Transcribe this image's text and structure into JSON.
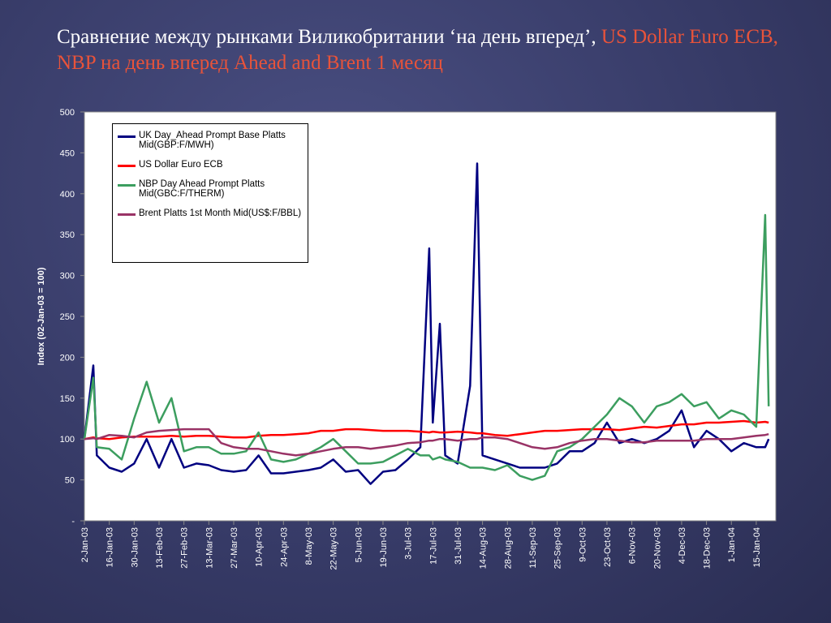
{
  "chart_data": {
    "type": "line",
    "title": [
      "Сравнение между рынками Виликобритании ‘на день вперед’,",
      "US Dollar Euro ECB, NBP на день вперед  Ahead and Brent 1 месяц"
    ],
    "title_colors": [
      "#ffffff",
      "#e8533a"
    ],
    "ylabel": "Index (02-Jan-03 = 100)",
    "x": [
      "2003-01-02",
      "2003-01-07",
      "2003-01-09",
      "2003-01-16",
      "2003-01-23",
      "2003-01-30",
      "2003-02-06",
      "2003-02-13",
      "2003-02-20",
      "2003-02-27",
      "2003-03-06",
      "2003-03-13",
      "2003-03-20",
      "2003-03-27",
      "2003-04-03",
      "2003-04-10",
      "2003-04-17",
      "2003-04-24",
      "2003-05-01",
      "2003-05-08",
      "2003-05-15",
      "2003-05-22",
      "2003-05-29",
      "2003-06-05",
      "2003-06-12",
      "2003-06-19",
      "2003-06-26",
      "2003-07-03",
      "2003-07-10",
      "2003-07-15",
      "2003-07-17",
      "2003-07-21",
      "2003-07-24",
      "2003-07-31",
      "2003-08-07",
      "2003-08-11",
      "2003-08-14",
      "2003-08-21",
      "2003-08-28",
      "2003-09-04",
      "2003-09-11",
      "2003-09-18",
      "2003-09-25",
      "2003-10-02",
      "2003-10-09",
      "2003-10-16",
      "2003-10-23",
      "2003-10-30",
      "2003-11-06",
      "2003-11-13",
      "2003-11-20",
      "2003-11-27",
      "2003-12-04",
      "2003-12-11",
      "2003-12-18",
      "2003-12-25",
      "2004-01-01",
      "2004-01-08",
      "2004-01-15",
      "2004-01-20",
      "2004-01-22"
    ],
    "series": [
      {
        "name": "UK Day_Ahead Prompt Base Platts Mid(GBP:F/MWH)",
        "color": "#000080",
        "values": [
          100,
          190,
          80,
          65,
          60,
          70,
          100,
          65,
          100,
          65,
          70,
          68,
          62,
          60,
          62,
          80,
          58,
          58,
          60,
          62,
          65,
          75,
          60,
          62,
          45,
          60,
          62,
          75,
          90,
          333,
          120,
          241,
          80,
          70,
          165,
          437,
          80,
          75,
          70,
          65,
          65,
          65,
          70,
          85,
          85,
          95,
          120,
          95,
          100,
          95,
          100,
          110,
          135,
          90,
          110,
          100,
          85,
          95,
          90,
          90,
          100
        ]
      },
      {
        "name": "US Dollar Euro ECB",
        "color": "#ff0000",
        "values": [
          100,
          102,
          101,
          100,
          102,
          103,
          103,
          103,
          104,
          103,
          104,
          104,
          103,
          102,
          102,
          104,
          105,
          105,
          106,
          107,
          110,
          110,
          112,
          112,
          111,
          110,
          110,
          110,
          109,
          108,
          109,
          108,
          108,
          109,
          108,
          107,
          107,
          105,
          104,
          106,
          108,
          110,
          110,
          111,
          112,
          112,
          112,
          111,
          113,
          115,
          114,
          116,
          118,
          118,
          120,
          120,
          121,
          122,
          120,
          121,
          120
        ]
      },
      {
        "name": "NBP Day Ahead Prompt Platts Mid(GBC:F/THERM)",
        "color": "#3c9e5f",
        "values": [
          100,
          175,
          90,
          88,
          75,
          125,
          170,
          120,
          150,
          85,
          90,
          90,
          82,
          82,
          85,
          108,
          75,
          72,
          75,
          82,
          90,
          100,
          85,
          70,
          70,
          72,
          80,
          88,
          80,
          80,
          75,
          78,
          75,
          72,
          65,
          65,
          65,
          62,
          68,
          55,
          50,
          55,
          85,
          90,
          100,
          115,
          130,
          150,
          140,
          120,
          140,
          145,
          155,
          140,
          145,
          125,
          135,
          130,
          115,
          374,
          140
        ]
      },
      {
        "name": "Brent Platts 1st Month Mid(US$:F/BBL)",
        "color": "#993366",
        "values": [
          100,
          101,
          100,
          105,
          104,
          102,
          108,
          110,
          111,
          112,
          112,
          112,
          95,
          90,
          88,
          88,
          85,
          82,
          80,
          82,
          85,
          88,
          90,
          90,
          88,
          90,
          92,
          95,
          96,
          98,
          98,
          100,
          100,
          98,
          100,
          100,
          102,
          102,
          100,
          95,
          90,
          88,
          90,
          95,
          98,
          100,
          100,
          98,
          96,
          96,
          98,
          98,
          98,
          98,
          100,
          100,
          100,
          102,
          104,
          105,
          106
        ]
      }
    ],
    "xlim": [
      "2003-01-02",
      "2004-01-26"
    ],
    "xticks": [
      {
        "value": "2003-01-02",
        "label": "2-Jan-03"
      },
      {
        "value": "2003-01-16",
        "label": "16-Jan-03"
      },
      {
        "value": "2003-01-30",
        "label": "30-Jan-03"
      },
      {
        "value": "2003-02-13",
        "label": "13-Feb-03"
      },
      {
        "value": "2003-02-27",
        "label": "27-Feb-03"
      },
      {
        "value": "2003-03-13",
        "label": "13-Mar-03"
      },
      {
        "value": "2003-03-27",
        "label": "27-Mar-03"
      },
      {
        "value": "2003-04-10",
        "label": "10-Apr-03"
      },
      {
        "value": "2003-04-24",
        "label": "24-Apr-03"
      },
      {
        "value": "2003-05-08",
        "label": "8-May-03"
      },
      {
        "value": "2003-05-22",
        "label": "22-May-03"
      },
      {
        "value": "2003-06-05",
        "label": "5-Jun-03"
      },
      {
        "value": "2003-06-19",
        "label": "19-Jun-03"
      },
      {
        "value": "2003-07-03",
        "label": "3-Jul-03"
      },
      {
        "value": "2003-07-17",
        "label": "17-Jul-03"
      },
      {
        "value": "2003-07-31",
        "label": "31-Jul-03"
      },
      {
        "value": "2003-08-14",
        "label": "14-Aug-03"
      },
      {
        "value": "2003-08-28",
        "label": "28-Aug-03"
      },
      {
        "value": "2003-09-11",
        "label": "11-Sep-03"
      },
      {
        "value": "2003-09-25",
        "label": "25-Sep-03"
      },
      {
        "value": "2003-10-09",
        "label": "9-Oct-03"
      },
      {
        "value": "2003-10-23",
        "label": "23-Oct-03"
      },
      {
        "value": "2003-11-06",
        "label": "6-Nov-03"
      },
      {
        "value": "2003-11-20",
        "label": "20-Nov-03"
      },
      {
        "value": "2003-12-04",
        "label": "4-Dec-03"
      },
      {
        "value": "2003-12-18",
        "label": "18-Dec-03"
      },
      {
        "value": "2004-01-01",
        "label": "1-Jan-04"
      },
      {
        "value": "2004-01-15",
        "label": "15-Jan-04"
      }
    ],
    "ylim": [
      0,
      500
    ],
    "yticks": [
      {
        "value": 0,
        "label": "-"
      },
      50,
      100,
      150,
      200,
      250,
      300,
      350,
      400,
      450,
      500
    ],
    "grid": false
  }
}
